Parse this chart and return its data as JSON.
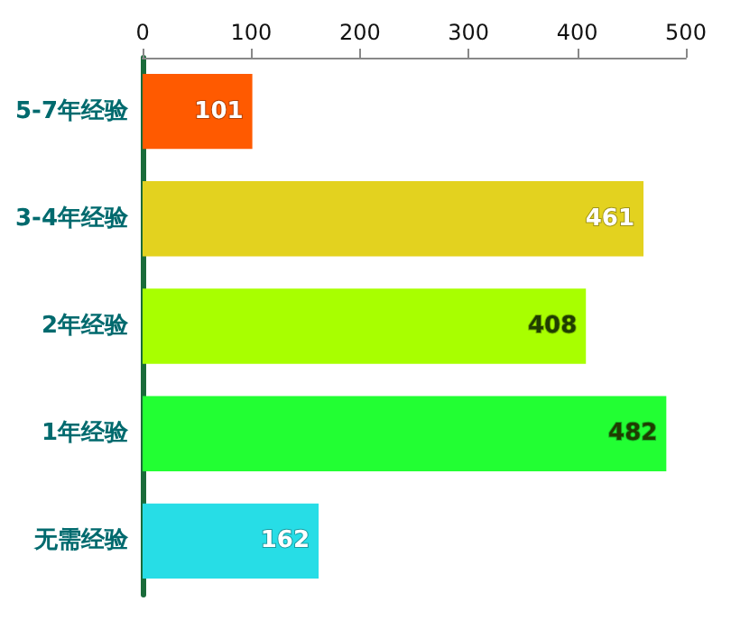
{
  "chart_data": {
    "type": "bar",
    "orientation": "horizontal",
    "categories": [
      "5-7年经验",
      "3-4年经验",
      "2年经验",
      "1年经验",
      "无需经验"
    ],
    "values": [
      101,
      461,
      408,
      482,
      162
    ],
    "colors": [
      "#ff5a00",
      "#e3d21f",
      "#a8ff00",
      "#22ff33",
      "#27dde6"
    ],
    "xlim": [
      0,
      500
    ],
    "xticks": [
      0,
      100,
      200,
      300,
      400,
      500
    ],
    "grid": false,
    "data_labels": true
  }
}
